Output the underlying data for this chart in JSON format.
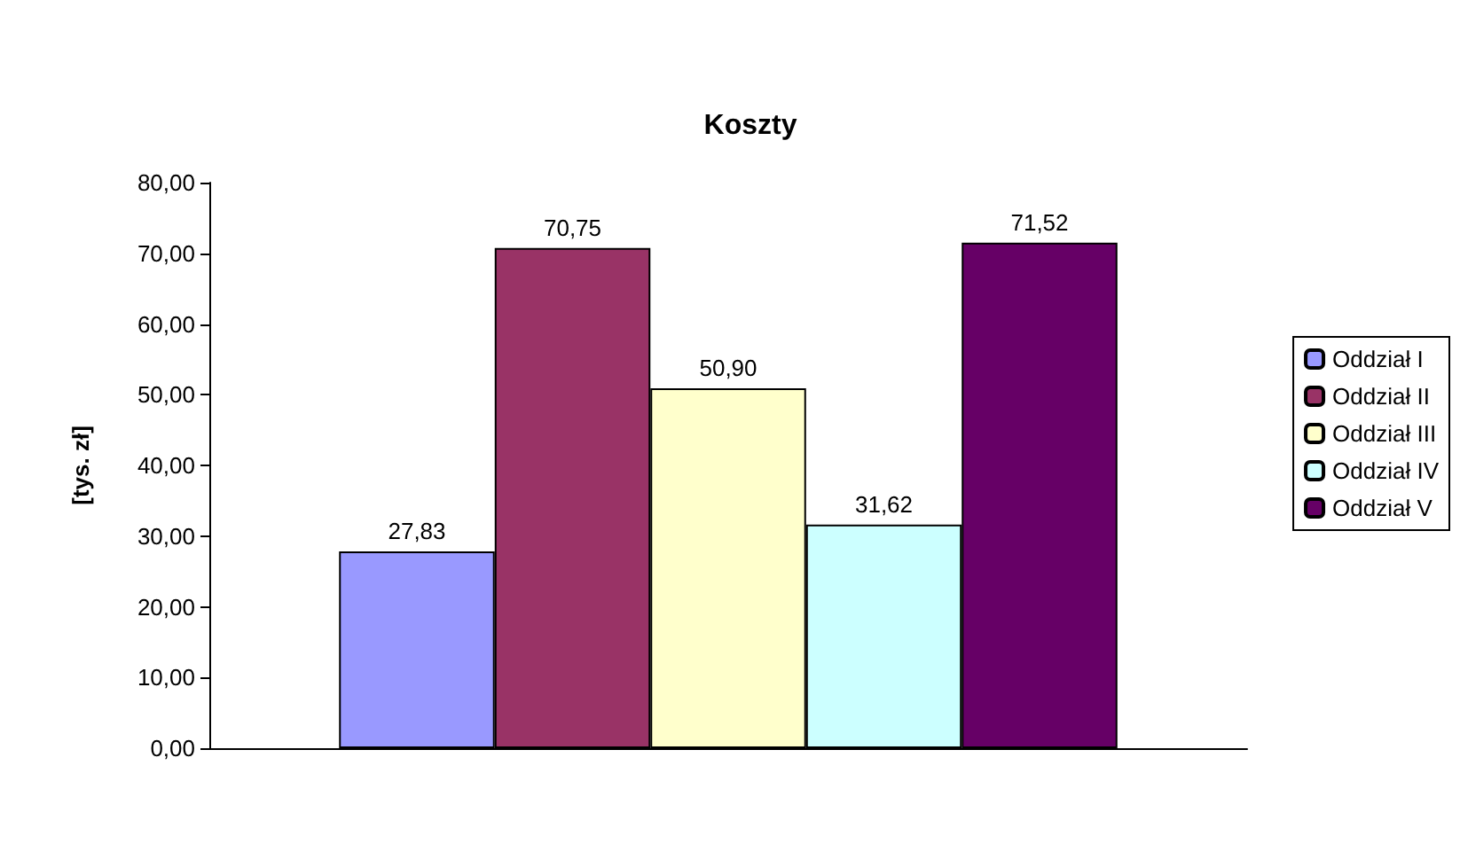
{
  "chart_data": {
    "type": "bar",
    "title": "Koszty",
    "ylabel": "[tys. zł]",
    "categories": [
      null
    ],
    "series": [
      {
        "name": "Oddział I",
        "color": "#9999ff",
        "values": [
          27.83
        ],
        "value_labels": [
          "27,83"
        ]
      },
      {
        "name": "Oddział II",
        "color": "#993366",
        "values": [
          70.75
        ],
        "value_labels": [
          "70,75"
        ]
      },
      {
        "name": "Oddział III",
        "color": "#ffffcc",
        "values": [
          50.9
        ],
        "value_labels": [
          "50,90"
        ]
      },
      {
        "name": "Oddział IV",
        "color": "#ccffff",
        "values": [
          31.62
        ],
        "value_labels": [
          "31,62"
        ]
      },
      {
        "name": "Oddział V",
        "color": "#660066",
        "values": [
          71.52
        ],
        "value_labels": [
          "71,52"
        ]
      }
    ],
    "ylim": [
      0,
      80
    ],
    "yticks": [
      {
        "value": 0,
        "label": "0,00"
      },
      {
        "value": 10,
        "label": "10,00"
      },
      {
        "value": 20,
        "label": "20,00"
      },
      {
        "value": 30,
        "label": "30,00"
      },
      {
        "value": 40,
        "label": "40,00"
      },
      {
        "value": 50,
        "label": "50,00"
      },
      {
        "value": 60,
        "label": "60,00"
      },
      {
        "value": 70,
        "label": "70,00"
      },
      {
        "value": 80,
        "label": "80,00"
      }
    ],
    "grid": false,
    "legend": "right"
  }
}
